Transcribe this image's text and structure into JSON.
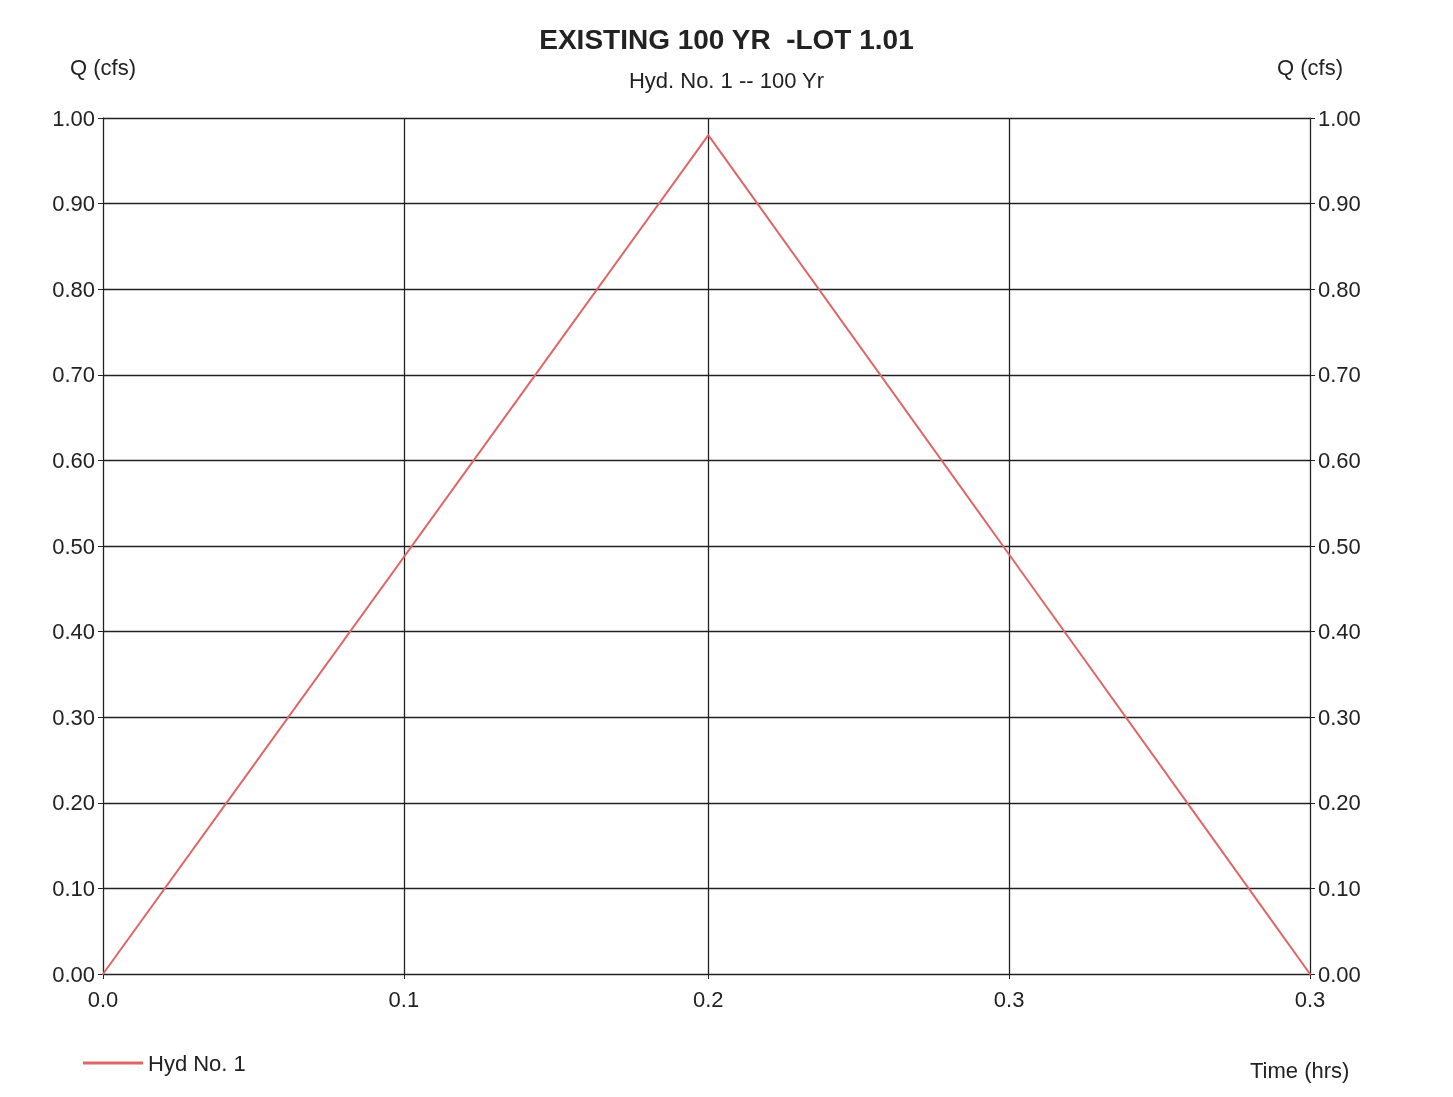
{
  "chart_data": {
    "type": "line",
    "title": "EXISTING 100 YR  -LOT 1.01",
    "subtitle": "Hyd. No. 1 -- 100 Yr",
    "xlabel": "Time (hrs)",
    "ylabel": "Q (cfs)",
    "y2label": "Q (cfs)",
    "x": [
      0,
      0.167,
      0.333
    ],
    "series": [
      {
        "name": "Hyd No. 1",
        "color": "#e06666",
        "values": [
          0,
          0.98,
          0
        ]
      }
    ],
    "xlim": [
      0,
      0.333
    ],
    "xticks": [
      {
        "value": 0,
        "label": "0.0"
      },
      {
        "value": 0.083,
        "label": "0.1"
      },
      {
        "value": 0.167,
        "label": "0.2"
      },
      {
        "value": 0.25,
        "label": "0.3"
      },
      {
        "value": 0.333,
        "label": "0.3"
      }
    ],
    "ylim": [
      0,
      1
    ],
    "yticks": [
      {
        "value": 0,
        "label": "0.00"
      },
      {
        "value": 0.1,
        "label": "0.10"
      },
      {
        "value": 0.2,
        "label": "0.20"
      },
      {
        "value": 0.3,
        "label": "0.30"
      },
      {
        "value": 0.4,
        "label": "0.40"
      },
      {
        "value": 0.5,
        "label": "0.50"
      },
      {
        "value": 0.6,
        "label": "0.60"
      },
      {
        "value": 0.7,
        "label": "0.70"
      },
      {
        "value": 0.8,
        "label": "0.80"
      },
      {
        "value": 0.9,
        "label": "0.90"
      },
      {
        "value": 1,
        "label": "1.00"
      }
    ],
    "y2lim": [
      0,
      1
    ],
    "y2ticks": [
      {
        "value": 0,
        "label": "0.00"
      },
      {
        "value": 0.1,
        "label": "0.10"
      },
      {
        "value": 0.2,
        "label": "0.20"
      },
      {
        "value": 0.3,
        "label": "0.30"
      },
      {
        "value": 0.4,
        "label": "0.40"
      },
      {
        "value": 0.5,
        "label": "0.50"
      },
      {
        "value": 0.6,
        "label": "0.60"
      },
      {
        "value": 0.7,
        "label": "0.70"
      },
      {
        "value": 0.8,
        "label": "0.80"
      },
      {
        "value": 0.9,
        "label": "0.90"
      },
      {
        "value": 1,
        "label": "1.00"
      }
    ],
    "grid": true,
    "legend": "bottom left",
    "marker": "none",
    "line_style": "solid"
  }
}
